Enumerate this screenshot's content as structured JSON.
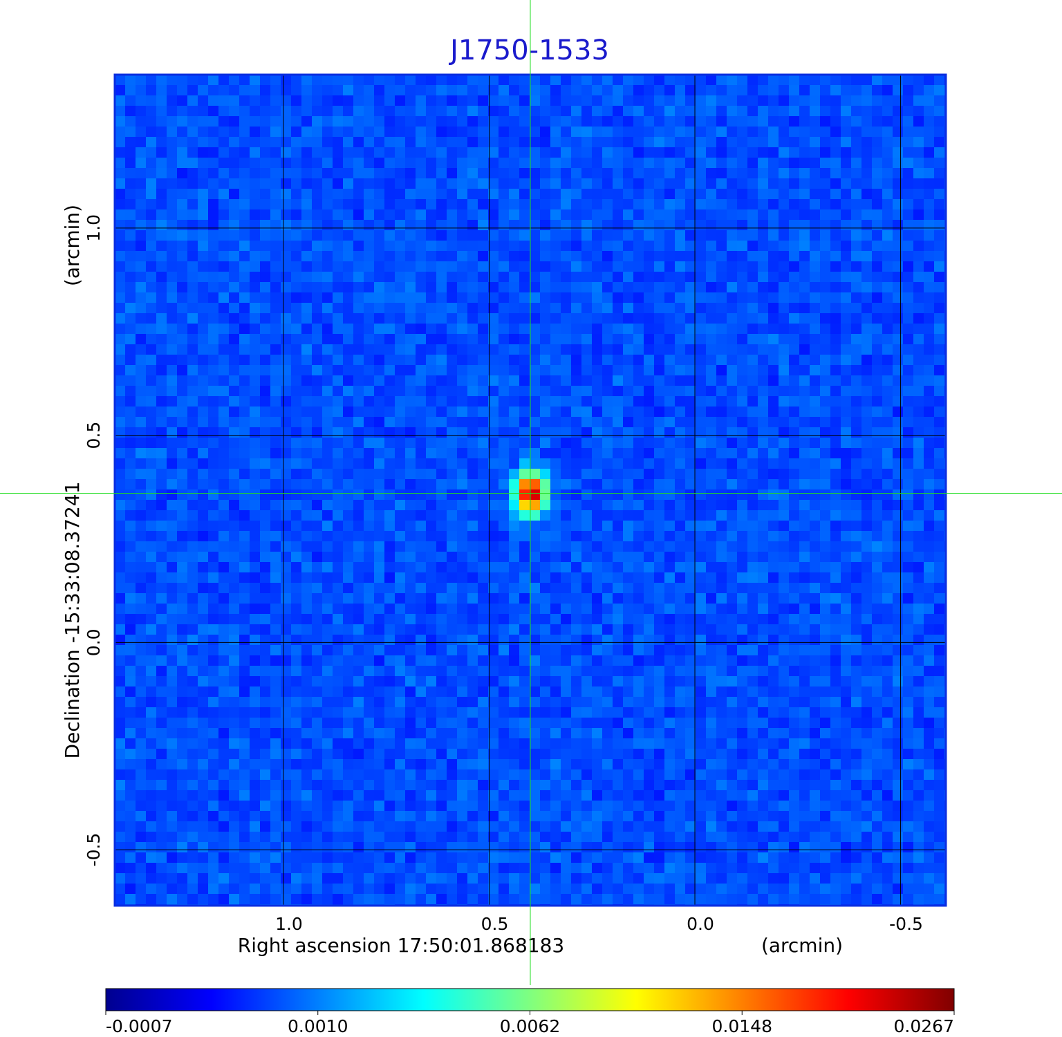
{
  "chart_data": {
    "type": "image",
    "title": "J1750-1533",
    "xlabel": "Right ascension  17:50:01.868183",
    "xunit": "(arcmin)",
    "ylabel": "Declination  -15:33:08.37241",
    "yunit": "(arcmin)",
    "xlim": [
      1.41,
      -0.61
    ],
    "ylim": [
      -0.635,
      1.37
    ],
    "xticks": [
      {
        "value": 1,
        "label": "1.0"
      },
      0.5,
      {
        "value": 0,
        "label": "0.0"
      },
      -0.5
    ],
    "yticks": [
      -0.5,
      {
        "value": 0,
        "label": "0.0"
      },
      0.5,
      {
        "value": 1,
        "label": "1.0"
      }
    ],
    "grid": true,
    "crosshair": {
      "x": 0.4,
      "y": 0.36
    },
    "colorbar_ticks": [
      -0.0007,
      {
        "value": 0.001,
        "label": "0.0010"
      },
      0.0062,
      0.0148,
      0.0267
    ]
  }
}
